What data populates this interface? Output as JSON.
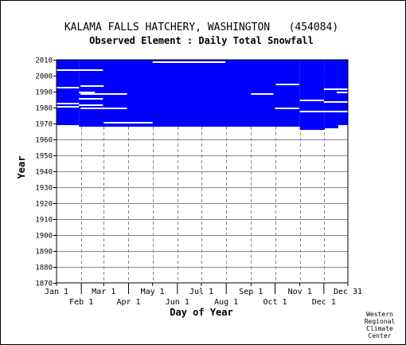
{
  "chart_data": {
    "type": "heatmap",
    "title": "KALAMA FALLS HATCHERY, WASHINGTON   (454084)",
    "subtitle": "Observed Element : Daily Total Snowfall",
    "xlabel": "Day of Year",
    "ylabel": "Year",
    "ylim": [
      1870,
      2010
    ],
    "y_ticks": [
      1870,
      1880,
      1890,
      1900,
      1910,
      1920,
      1930,
      1940,
      1950,
      1960,
      1970,
      1980,
      1990,
      2000,
      2010
    ],
    "y_tick_labels": [
      "1870",
      "1880",
      "1890",
      "1900",
      "1910",
      "1920",
      "1930",
      "1940",
      "1950",
      "1960",
      "1970",
      "1980",
      "1990",
      "2000",
      "2010"
    ],
    "x_ticks_row1": [
      {
        "label": "Jan 1",
        "day": 1
      },
      {
        "label": "Mar 1",
        "day": 60
      },
      {
        "label": "May 1",
        "day": 121
      },
      {
        "label": "Jul 1",
        "day": 182
      },
      {
        "label": "Sep 1",
        "day": 244
      },
      {
        "label": "Nov 1",
        "day": 305
      },
      {
        "label": "Dec 31",
        "day": 365
      }
    ],
    "x_ticks_row2": [
      {
        "label": "Feb 1",
        "day": 32
      },
      {
        "label": "Apr 1",
        "day": 91
      },
      {
        "label": "Jun 1",
        "day": 152
      },
      {
        "label": "Aug 1",
        "day": 213
      },
      {
        "label": "Oct 1",
        "day": 274
      },
      {
        "label": "Dec 1",
        "day": 335
      }
    ],
    "grid": true,
    "data_color": "#0000ff",
    "observed_blocks": [
      {
        "day_start": 1,
        "day_end": 29,
        "year_start": 1969,
        "year_end": 2010
      },
      {
        "day_start": 29,
        "day_end": 305,
        "year_start": 1968,
        "year_end": 2010
      },
      {
        "day_start": 305,
        "day_end": 336,
        "year_start": 1966,
        "year_end": 2010
      },
      {
        "day_start": 336,
        "day_end": 353,
        "year_start": 1967,
        "year_end": 2010
      },
      {
        "day_start": 353,
        "day_end": 365,
        "year_start": 1969,
        "year_end": 2010
      }
    ],
    "missing_segments": [
      {
        "year": 2008,
        "day_start": 121,
        "day_end": 212
      },
      {
        "year": 2003,
        "day_start": 1,
        "day_end": 29
      },
      {
        "year": 2003,
        "day_start": 29,
        "day_end": 59
      },
      {
        "year": 1993,
        "day_start": 31,
        "day_end": 60
      },
      {
        "year": 1992,
        "day_start": 1,
        "day_end": 29
      },
      {
        "year": 1989,
        "day_start": 29,
        "day_end": 49
      },
      {
        "year": 1988,
        "day_start": 31,
        "day_end": 89
      },
      {
        "year": 1988,
        "day_start": 244,
        "day_end": 272
      },
      {
        "year": 1985,
        "day_start": 29,
        "day_end": 59
      },
      {
        "year": 1984,
        "day_start": 305,
        "day_end": 335
      },
      {
        "year": 1983,
        "day_start": 335,
        "day_end": 365
      },
      {
        "year": 1982,
        "day_start": 1,
        "day_end": 29
      },
      {
        "year": 1981,
        "day_start": 29,
        "day_end": 59
      },
      {
        "year": 1980,
        "day_start": 1,
        "day_end": 29
      },
      {
        "year": 1979,
        "day_start": 31,
        "day_end": 89
      },
      {
        "year": 1979,
        "day_start": 274,
        "day_end": 304
      },
      {
        "year": 1977,
        "day_start": 305,
        "day_end": 365
      },
      {
        "year": 1970,
        "day_start": 60,
        "day_end": 92
      },
      {
        "year": 1970,
        "day_start": 92,
        "day_end": 121
      },
      {
        "year": 1994,
        "day_start": 275,
        "day_end": 304
      },
      {
        "year": 1991,
        "day_start": 335,
        "day_end": 365
      },
      {
        "year": 1989,
        "day_start": 351,
        "day_end": 365
      }
    ]
  },
  "footer": {
    "line1": "Western",
    "line2": "Regional",
    "line3": "Climate",
    "line4": "Center"
  }
}
